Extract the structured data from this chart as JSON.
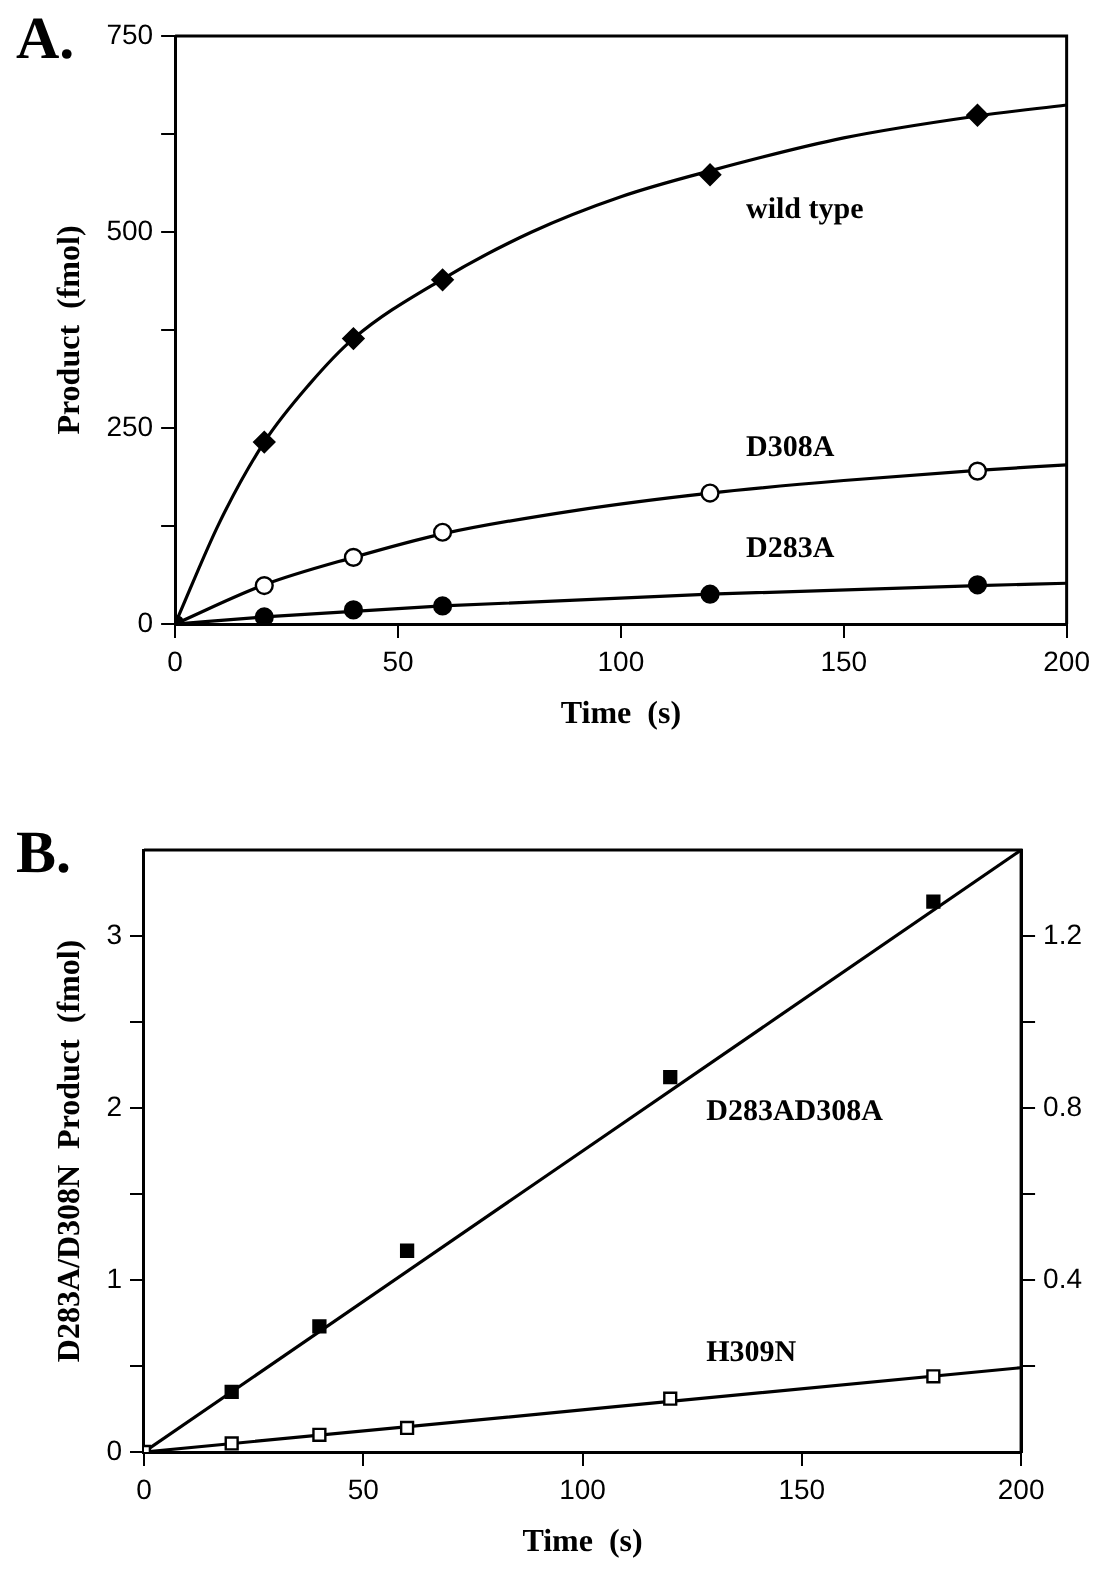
{
  "chart_data": [
    {
      "type": "scatter",
      "title": "A.",
      "xlabel": "Time  (s)",
      "ylabel": "Product  (fmol)",
      "xlim": [
        0,
        200
      ],
      "xticks": [
        0,
        50,
        100,
        150,
        200
      ],
      "ylim": [
        0,
        750
      ],
      "yticks": [
        0,
        {
          "value": 125,
          "label": null
        },
        250,
        {
          "value": 375,
          "label": null
        },
        500,
        {
          "value": 625,
          "label": null
        },
        750
      ],
      "grid": false,
      "legend": false,
      "series": [
        {
          "type": "line",
          "color": "#000000",
          "marker": "none",
          "x": [
            0,
            10,
            20,
            30,
            40,
            60,
            80,
            100,
            120,
            150,
            180,
            200
          ],
          "values": [
            0,
            130,
            232,
            305,
            364,
            440,
            500,
            545,
            578,
            620,
            648,
            662
          ]
        },
        {
          "type": "line",
          "color": "#000000",
          "marker": "none",
          "x": [
            0,
            20,
            40,
            60,
            90,
            120,
            150,
            180,
            200
          ],
          "values": [
            0,
            50,
            85,
            115,
            145,
            167,
            183,
            196,
            203
          ]
        },
        {
          "type": "line",
          "color": "#000000",
          "marker": "none",
          "x": [
            0,
            20,
            60,
            120,
            180,
            200
          ],
          "values": [
            0,
            9,
            23,
            38,
            49,
            52
          ]
        },
        {
          "name": "wild type",
          "color": "#000000",
          "marker": "diamond",
          "x": [
            20,
            40,
            60,
            120,
            180
          ],
          "values": [
            232,
            364,
            439,
            573,
            649
          ]
        },
        {
          "name": "D308A",
          "color": "#ffffff",
          "marker": "circle",
          "x": [
            20,
            40,
            60,
            120,
            180
          ],
          "values": [
            49,
            85,
            117,
            167,
            195
          ]
        },
        {
          "name": "D283A",
          "color": "#000000",
          "marker": "circle",
          "x": [
            0,
            20,
            40,
            60,
            120,
            180
          ],
          "values": [
            0,
            9,
            18,
            23,
            38,
            50
          ]
        }
      ]
    },
    {
      "type": "scatter",
      "title": "B.",
      "xlabel": "Time  (s)",
      "ylabel": "D283A/D308N  Product  (fmol)",
      "xlim": [
        0,
        200
      ],
      "xticks": [
        0,
        50,
        100,
        150,
        200
      ],
      "ylim": [
        0,
        3.5
      ],
      "yticks": [
        0,
        {
          "value": 0.5,
          "label": null
        },
        1,
        {
          "value": 1.5,
          "label": null
        },
        2,
        {
          "value": 2.5,
          "label": null
        },
        3
      ],
      "y2lim": [
        0,
        1.4
      ],
      "y2ticks": [
        {
          "value": 0.2,
          "label": null
        },
        0.4,
        {
          "value": 0.6,
          "label": null
        },
        0.8,
        {
          "value": 1.0,
          "label": null
        },
        1.2
      ],
      "grid": false,
      "legend": false,
      "series": [
        {
          "type": "line",
          "color": "#000000",
          "marker": "none",
          "x": [
            0,
            200
          ],
          "values": [
            0,
            3.5
          ]
        },
        {
          "type": "line",
          "color": "#000000",
          "marker": "none",
          "x": [
            0,
            200
          ],
          "values": [
            0,
            0.49
          ]
        },
        {
          "name": "D283AD308A",
          "color": "#000000",
          "marker": "square",
          "x": [
            20,
            40,
            60,
            120,
            180
          ],
          "values": [
            0.35,
            0.73,
            1.17,
            2.18,
            3.2
          ]
        },
        {
          "name": "H309N",
          "color": "#ffffff",
          "marker": "square",
          "x": [
            0,
            20,
            40,
            60,
            120,
            180
          ],
          "values": [
            0,
            0.05,
            0.1,
            0.14,
            0.31,
            0.44
          ]
        }
      ]
    }
  ]
}
